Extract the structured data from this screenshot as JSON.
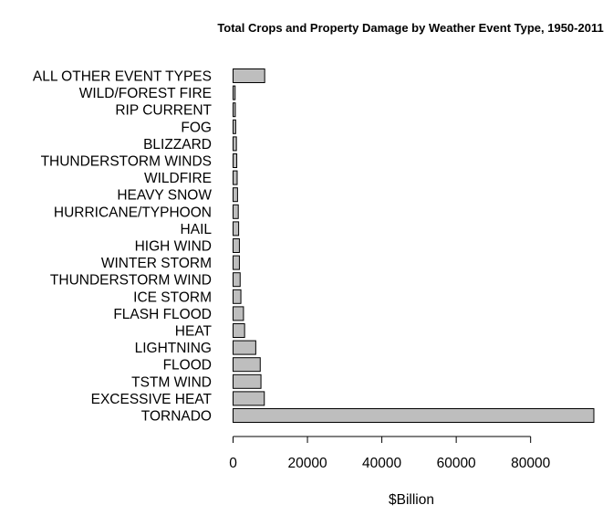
{
  "chart_data": {
    "type": "bar",
    "orientation": "horizontal",
    "title": "Total Crops and Property Damage by Weather Event Type, 1950-2011",
    "xlabel": "$Billion",
    "ylabel": "",
    "categories": [
      "TORNADO",
      "EXCESSIVE HEAT",
      "TSTM WIND",
      "FLOOD",
      "LIGHTNING",
      "HEAT",
      "FLASH FLOOD",
      "ICE STORM",
      "THUNDERSTORM WIND",
      "WINTER STORM",
      "HIGH WIND",
      "HAIL",
      "HURRICANE/TYPHOON",
      "HEAVY SNOW",
      "WILDFIRE",
      "THUNDERSTORM WINDS",
      "BLIZZARD",
      "FOG",
      "RIP CURRENT",
      "WILD/FOREST FIRE",
      "ALL OTHER EVENT TYPES"
    ],
    "values": [
      97000,
      8400,
      7500,
      7300,
      6100,
      3100,
      2800,
      2100,
      1900,
      1700,
      1700,
      1500,
      1400,
      1200,
      1100,
      1000,
      900,
      700,
      600,
      550,
      8500
    ],
    "xlim": [
      0,
      97000
    ],
    "xticks": [
      0,
      20000,
      40000,
      60000,
      80000
    ],
    "xtick_labels": [
      "0",
      "20000",
      "40000",
      "60000",
      "80000"
    ],
    "bar_color": "#bebebe",
    "bar_border": "#000000",
    "grid": false,
    "legend": "none"
  }
}
